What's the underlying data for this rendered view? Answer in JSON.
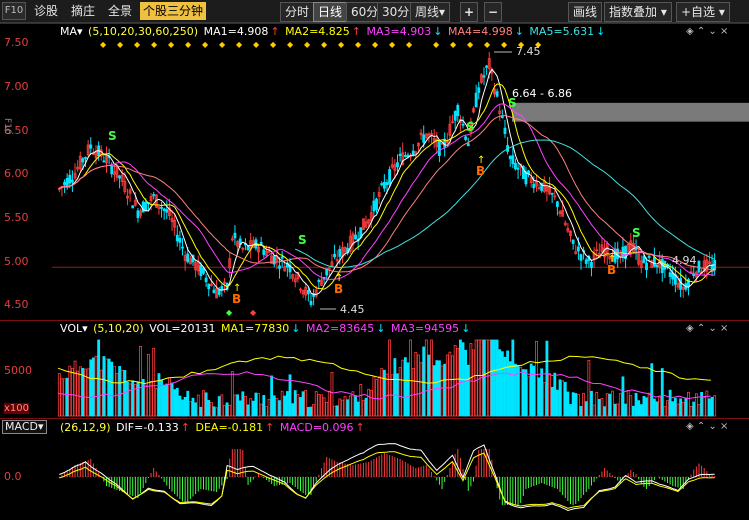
{
  "toolbar": {
    "f10": "F10",
    "items": [
      "诊股",
      "摘庄",
      "全景"
    ],
    "selected_tab": "个股三分钟",
    "periods": [
      "分时",
      "日线",
      "60分",
      "30分",
      "周线▾"
    ],
    "active_period": "日线",
    "plus": "+",
    "minus": "−",
    "draw": "画线",
    "overlay": "指数叠加 ▾",
    "watchlist": "+自选 ▾"
  },
  "colors": {
    "up": "#ff3c3c",
    "down": "#00e5ff",
    "ma1": "#ffffff",
    "ma2": "#ffff00",
    "ma3": "#ff40ff",
    "ma4": "#ff8080",
    "ma5": "#40e0e0",
    "buy": "#ff6a00",
    "sell": "#40ff40"
  },
  "price_panel": {
    "indicator": "MA▾",
    "params": "(5,10,20,30,60,250)",
    "ma1": "MA1=4.908",
    "ma2": "MA2=4.825",
    "ma3": "MA3=4.903",
    "ma4": "MA4=4.998",
    "ma5": "MA5=5.631",
    "y_ticks": [
      "7.50",
      "7.00",
      "6.50",
      "6.00",
      "5.50",
      "5.00",
      "4.50"
    ],
    "high_label": "7.45",
    "low_label": "4.45",
    "range_label": "6.64 - 6.86",
    "last_label": "4.94",
    "sell_signal": "S",
    "buy_signal": "B"
  },
  "volume_panel": {
    "indicator": "VOL▾",
    "params": "(5,10,20)",
    "vol": "VOL=20131",
    "ma1": "MA1=77830",
    "ma2": "MA2=83645",
    "ma3": "MA3=94595",
    "y_ticks": [
      "5000",
      "x100"
    ]
  },
  "macd_panel": {
    "indicator": "MACD▾",
    "params": "(26,12,9)",
    "dif": "DIF=-0.133",
    "dea": "DEA=-0.181",
    "macd": "MACD=0.096",
    "y_ticks": [
      "0.0"
    ]
  },
  "side_tabs": [
    "F10"
  ],
  "panel_controls": [
    "◈",
    "⌃",
    "⌄",
    "×"
  ],
  "chart_data": {
    "type": "candlestick",
    "ylim": [
      4.35,
      7.6
    ],
    "y_ticks": [
      7.5,
      7.0,
      6.5,
      6.0,
      5.5,
      5.0,
      4.5
    ],
    "annotated_high": 7.45,
    "annotated_low": 4.45,
    "band": [
      6.64,
      6.86
    ],
    "last_close_line": 4.94
  }
}
